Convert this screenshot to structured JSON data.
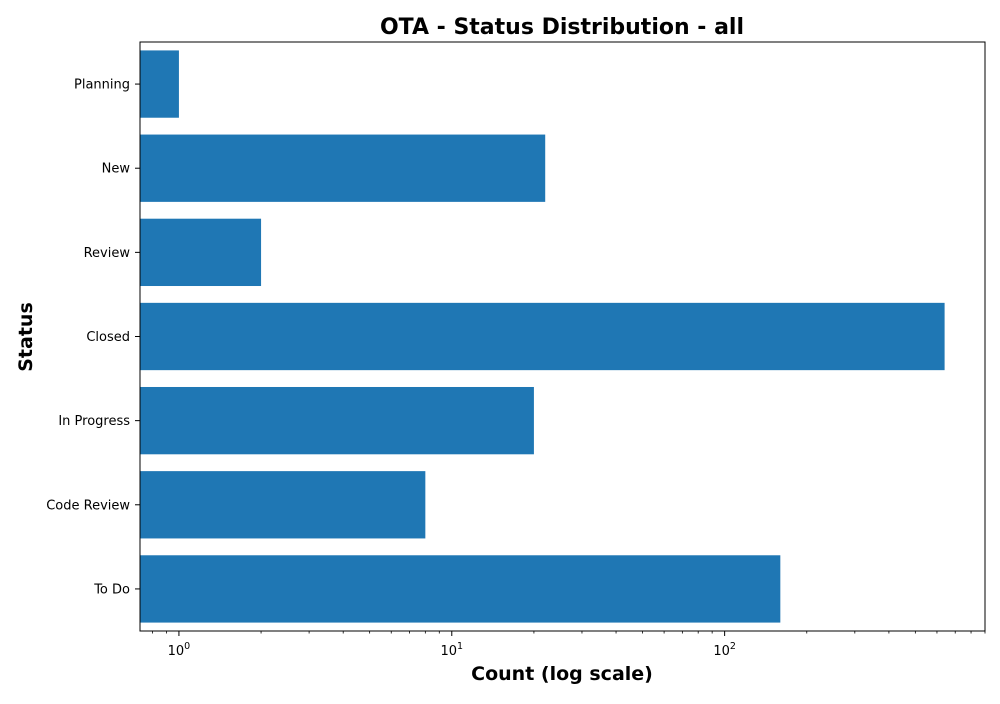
{
  "chart_data": {
    "type": "bar",
    "orientation": "horizontal",
    "title": "OTA - Status Distribution - all",
    "xlabel": "Count (log scale)",
    "ylabel": "Status",
    "xscale": "log",
    "xlim": [
      0.72,
      900
    ],
    "xticks": [
      {
        "value": 1,
        "base": "10",
        "exp": "0"
      },
      {
        "value": 10,
        "base": "10",
        "exp": "1"
      },
      {
        "value": 100,
        "base": "10",
        "exp": "2"
      }
    ],
    "categories": [
      "Planning",
      "New",
      "Review",
      "Closed",
      "In Progress",
      "Code Review",
      "To Do"
    ],
    "values": [
      1,
      22,
      2,
      640,
      20,
      8,
      160
    ],
    "bar_color": "#1f77b4",
    "grid": false,
    "legend": false
  }
}
